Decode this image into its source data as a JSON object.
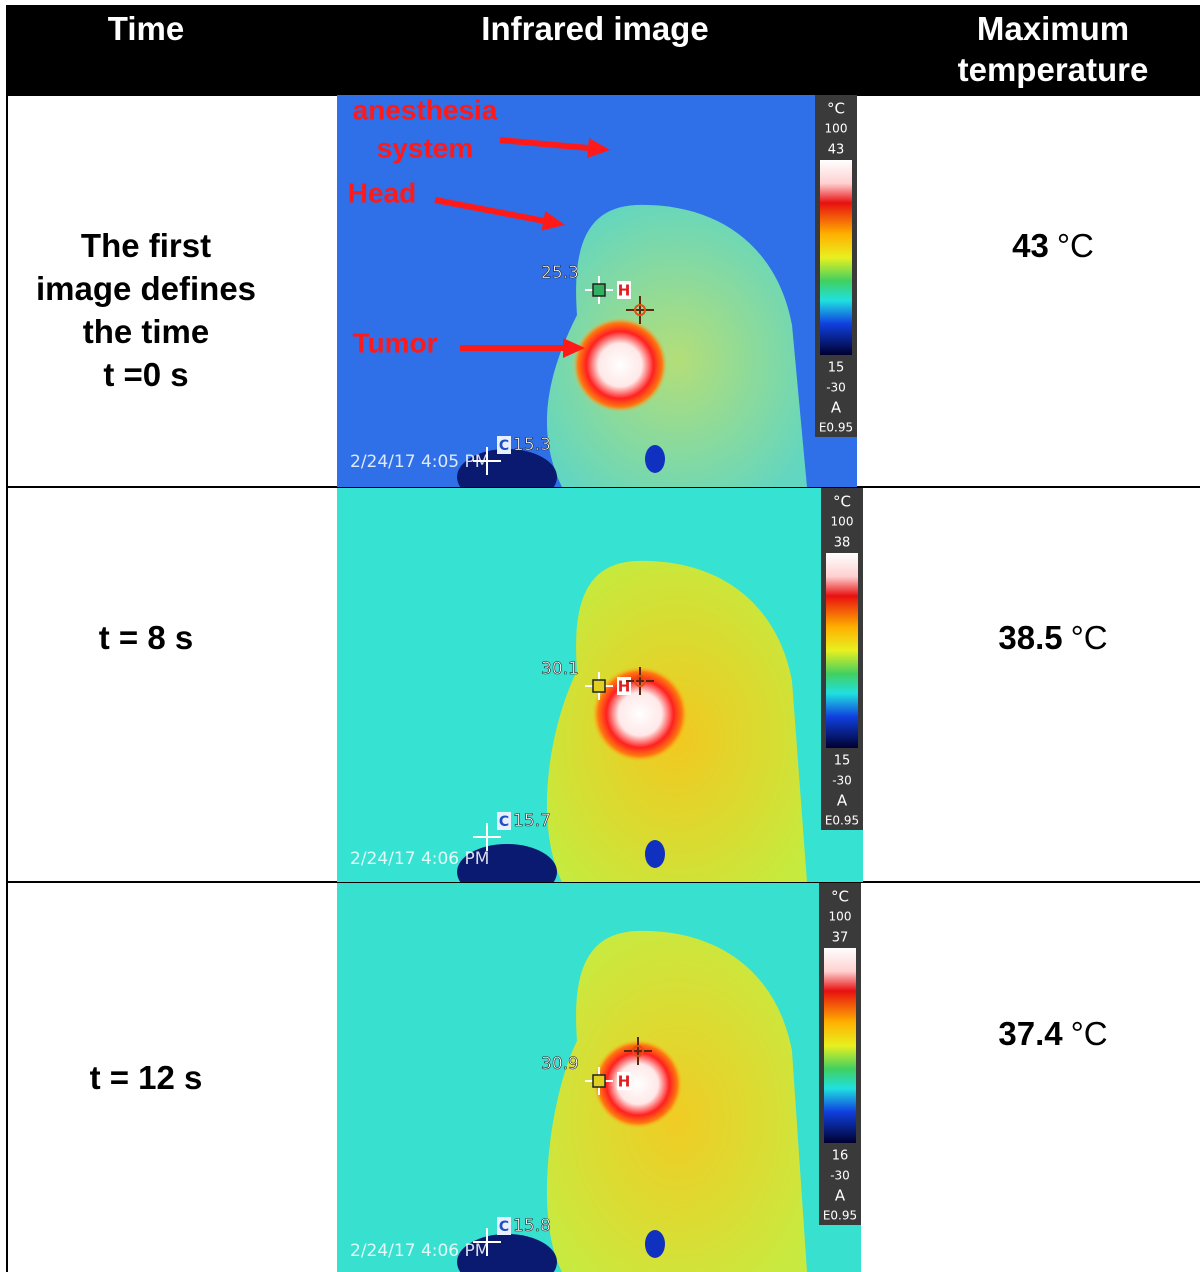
{
  "header": {
    "columns": [
      "Time",
      "Infrared image",
      "Maximum temperature"
    ]
  },
  "rows": [
    {
      "time": [
        "The first",
        "image defines",
        "the time",
        "t =0 s"
      ],
      "max_temperature": {
        "value": "43",
        "unit": "°C"
      },
      "image": {
        "annotations": [
          "anesthesia",
          "system",
          "Head",
          "Tumor"
        ],
        "scale": {
          "unit": "°C",
          "range_top": "100",
          "span_max": "43",
          "span_min": "15",
          "range_bottom": "-30",
          "mode": "A",
          "emissivity": "E0.95"
        },
        "spot": "25.3",
        "hot_marker": "H",
        "cold_marker": "C",
        "cold_spot": "15.3",
        "timestamp": "2/24/17 4:05 PM"
      }
    },
    {
      "time": [
        "t = 8 s"
      ],
      "max_temperature": {
        "value": "38.5",
        "unit": "°C"
      },
      "image": {
        "annotations": [],
        "scale": {
          "unit": "°C",
          "range_top": "100",
          "span_max": "38",
          "span_min": "15",
          "range_bottom": "-30",
          "mode": "A",
          "emissivity": "E0.95"
        },
        "spot": "30.1",
        "hot_marker": "H",
        "cold_marker": "C",
        "cold_spot": "15.7",
        "timestamp": "2/24/17 4:06 PM"
      }
    },
    {
      "time": [
        "t = 12 s"
      ],
      "max_temperature": {
        "value": "37.4",
        "unit": "°C"
      },
      "image": {
        "annotations": [],
        "scale": {
          "unit": "°C",
          "range_top": "100",
          "span_max": "37",
          "span_min": "16",
          "range_bottom": "-30",
          "mode": "A",
          "emissivity": "E0.95"
        },
        "spot": "30.9",
        "hot_marker": "H",
        "cold_marker": "C",
        "cold_spot": "15.8",
        "timestamp": "2/24/17 4:06 PM"
      }
    }
  ]
}
